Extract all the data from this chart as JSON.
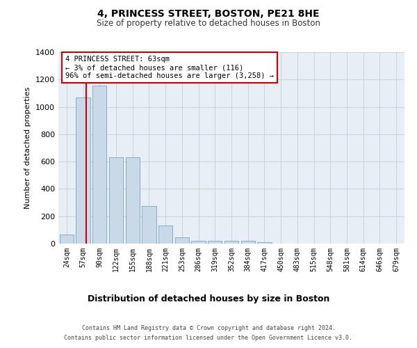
{
  "title1": "4, PRINCESS STREET, BOSTON, PE21 8HE",
  "title2": "Size of property relative to detached houses in Boston",
  "xlabel": "Distribution of detached houses by size in Boston",
  "ylabel": "Number of detached properties",
  "categories": [
    "24sqm",
    "57sqm",
    "90sqm",
    "122sqm",
    "155sqm",
    "188sqm",
    "221sqm",
    "253sqm",
    "286sqm",
    "319sqm",
    "352sqm",
    "384sqm",
    "417sqm",
    "450sqm",
    "483sqm",
    "515sqm",
    "548sqm",
    "581sqm",
    "614sqm",
    "646sqm",
    "679sqm"
  ],
  "values": [
    65,
    1070,
    1155,
    630,
    630,
    275,
    130,
    45,
    20,
    20,
    20,
    20,
    10,
    0,
    0,
    0,
    0,
    0,
    0,
    0,
    0
  ],
  "bar_color": "#c9d9e8",
  "bar_edge_color": "#6699bb",
  "annotation_line_color": "#cc0000",
  "annotation_text_line1": "4 PRINCESS STREET: 63sqm",
  "annotation_text_line2": "← 3% of detached houses are smaller (116)",
  "annotation_text_line3": "96% of semi-detached houses are larger (3,258) →",
  "annotation_box_color": "#ffffff",
  "annotation_box_edge": "#cc0000",
  "ylim": [
    0,
    1400
  ],
  "yticks": [
    0,
    200,
    400,
    600,
    800,
    1000,
    1200,
    1400
  ],
  "grid_color": "#cccccc",
  "bg_color": "#e8eef5",
  "footer1": "Contains HM Land Registry data © Crown copyright and database right 2024.",
  "footer2": "Contains public sector information licensed under the Open Government Licence v3.0."
}
